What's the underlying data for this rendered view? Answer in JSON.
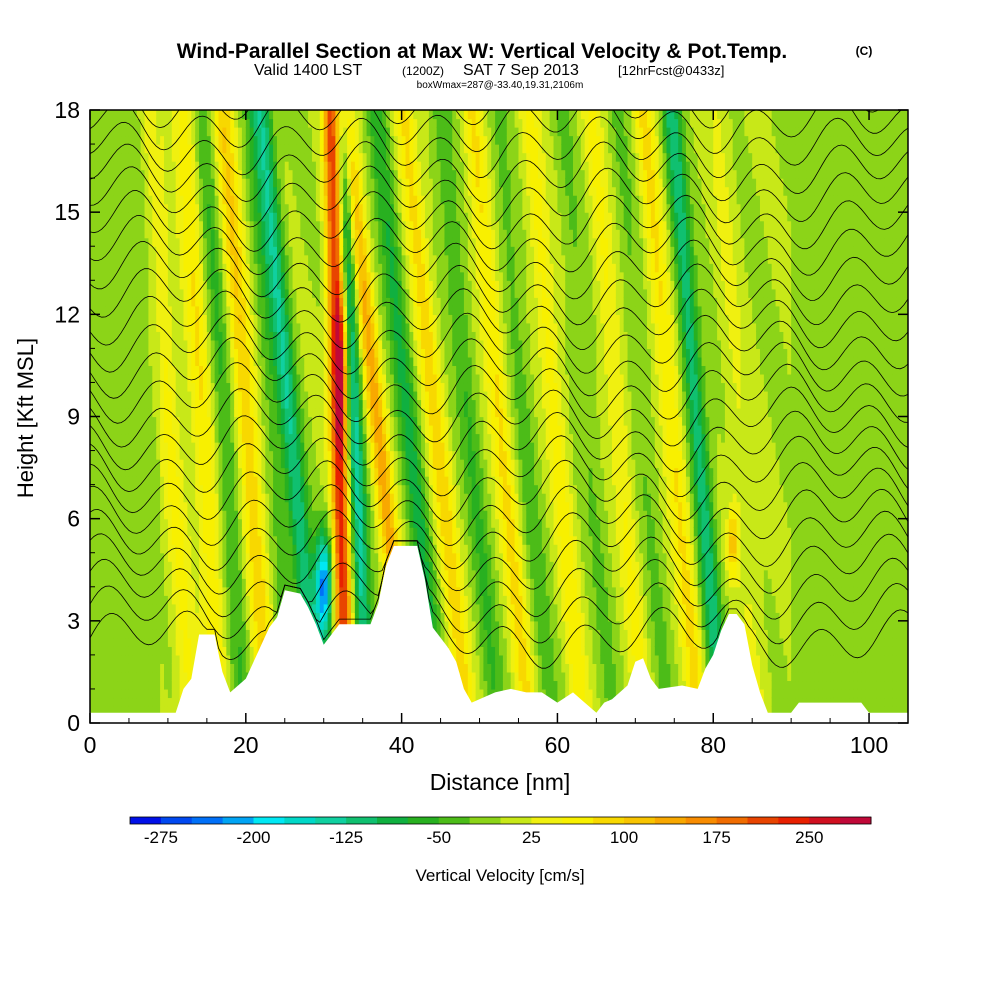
{
  "chart_data": {
    "type": "heatmap",
    "title": "Wind-Parallel Section at Max W: Vertical Velocity & Pot.Temp.",
    "copyright": "(C)",
    "subtitle": {
      "main": "Valid 1400 LST",
      "utc": "(1200Z)",
      "date": "SAT 7 Sep 2013",
      "forecast": "[12hrFcst@0433z]"
    },
    "info_line": "boxWmax=287@-33.40,19.31,2106m",
    "xlabel": "Distance [nm]",
    "ylabel": "Height [Kft MSL]",
    "xlim": [
      0,
      105
    ],
    "ylim": [
      0,
      18
    ],
    "x_ticks": [
      "0",
      "20",
      "40",
      "60",
      "80",
      "100"
    ],
    "y_ticks": [
      "0",
      "3",
      "6",
      "9",
      "12",
      "15",
      "18"
    ],
    "colorbar": {
      "label": "Vertical Velocity [cm/s]",
      "levels": [
        -300,
        -275,
        -250,
        -225,
        -200,
        -175,
        -150,
        -125,
        -100,
        -75,
        -50,
        -25,
        0,
        25,
        50,
        75,
        100,
        125,
        150,
        175,
        200,
        225,
        250,
        275,
        300
      ],
      "colors": [
        "#0010e8",
        "#0048f0",
        "#0070f8",
        "#00a4f4",
        "#00e8f4",
        "#00d8c8",
        "#10d0a0",
        "#10c070",
        "#10b040",
        "#28b020",
        "#4cbc18",
        "#8cd418",
        "#c8e818",
        "#f0f010",
        "#f8f000",
        "#f8d800",
        "#f8c400",
        "#f8a800",
        "#f88c00",
        "#f06c00",
        "#e84400",
        "#e82000",
        "#d01020",
        "#c00838"
      ],
      "tick_labels": [
        "-275",
        "-200",
        "-125",
        "-50",
        "25",
        "100",
        "175",
        "250"
      ]
    },
    "max_w_cm_s": 287,
    "max_w_location": "-33.40,19.31,2106m"
  }
}
